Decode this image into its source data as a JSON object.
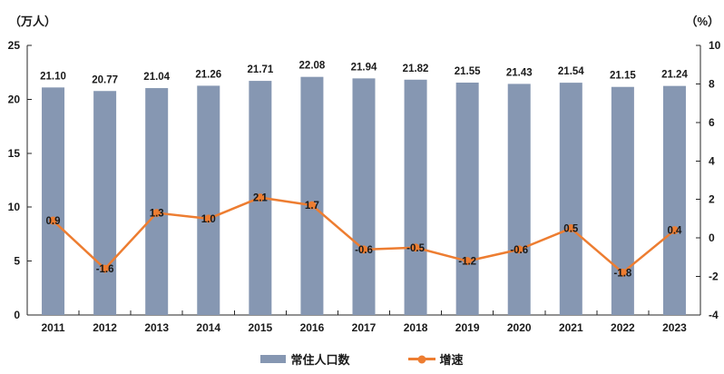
{
  "chart": {
    "left_axis_unit": "（万人）",
    "right_axis_unit": "（%）"
  },
  "legend": {
    "bar_label": "常住人口数",
    "line_label": "增速"
  },
  "colors": {
    "bar": "#8697B2",
    "line": "#ED7D31",
    "axis": "#262626",
    "text": "#1a1a1a"
  },
  "chart_data": {
    "type": "bar+line",
    "categories": [
      "2011",
      "2012",
      "2013",
      "2014",
      "2015",
      "2016",
      "2017",
      "2018",
      "2019",
      "2020",
      "2021",
      "2022",
      "2023"
    ],
    "series": [
      {
        "name": "常住人口数",
        "type": "bar",
        "axis": "left",
        "color": "#8697B2",
        "label_decimals": 2,
        "values": [
          21.1,
          20.77,
          21.04,
          21.26,
          21.71,
          22.08,
          21.94,
          21.82,
          21.55,
          21.43,
          21.54,
          21.15,
          21.24
        ]
      },
      {
        "name": "增速",
        "type": "line",
        "axis": "right",
        "color": "#ED7D31",
        "label_decimals": 1,
        "values": [
          0.9,
          -1.6,
          1.3,
          1.0,
          2.1,
          1.7,
          -0.6,
          -0.5,
          -1.2,
          -0.6,
          0.5,
          -1.8,
          0.4
        ]
      }
    ],
    "left_axis": {
      "label": "（万人）",
      "min": 0,
      "max": 25,
      "ticks": [
        0,
        5,
        10,
        15,
        20,
        25
      ]
    },
    "right_axis": {
      "label": "（%）",
      "min": -4,
      "max": 10,
      "ticks": [
        -4,
        -2,
        0,
        2,
        4,
        6,
        8,
        10
      ]
    },
    "grid": false,
    "legend_position": "bottom",
    "title": ""
  }
}
